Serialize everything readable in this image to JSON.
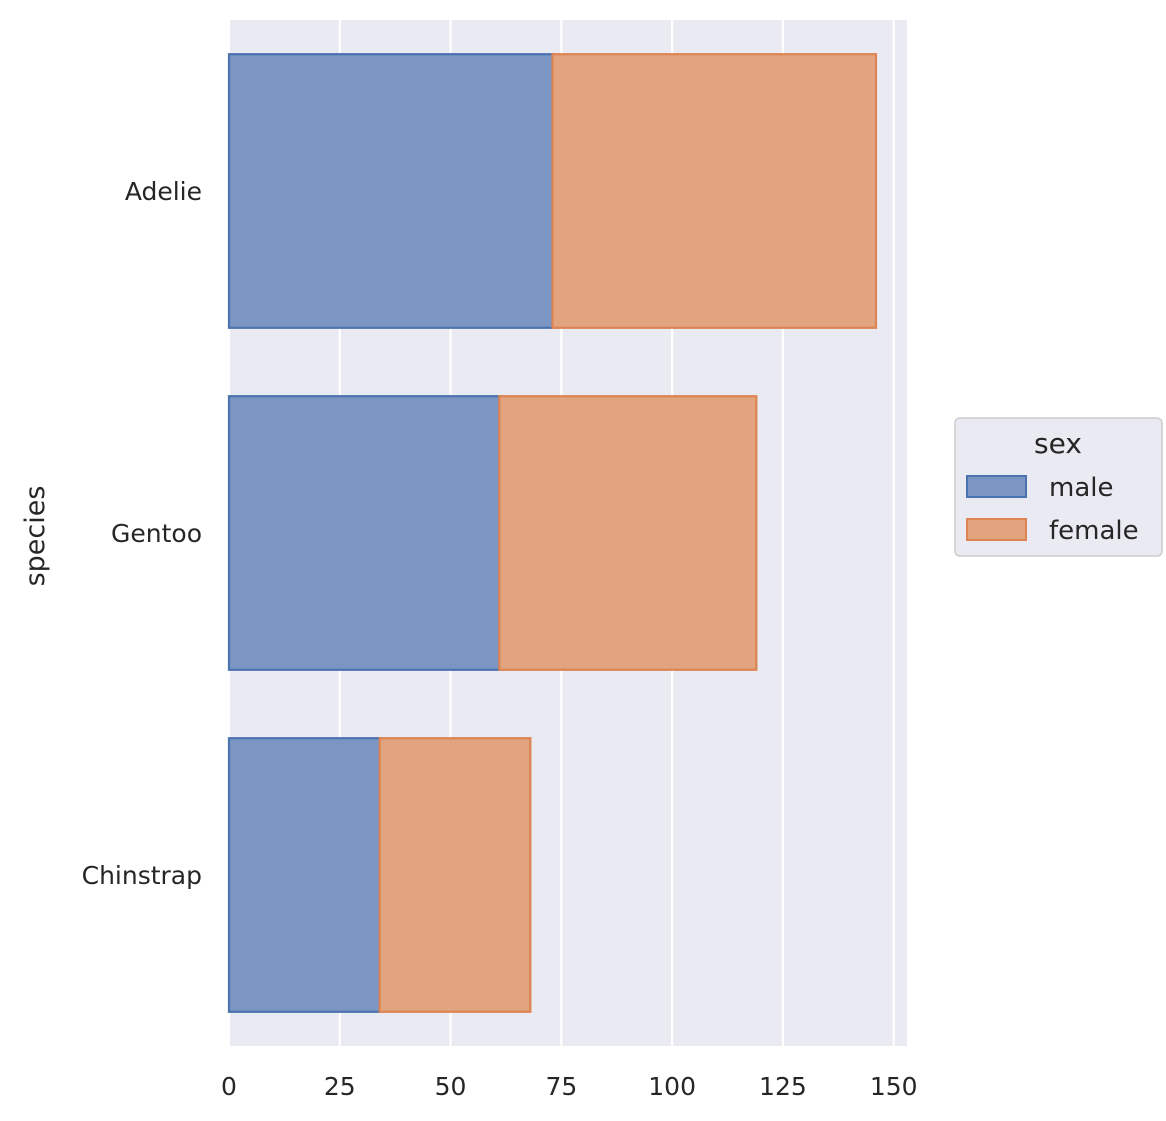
{
  "chart_data": {
    "type": "bar",
    "orientation": "horizontal",
    "stacked": true,
    "categories": [
      "Adelie",
      "Gentoo",
      "Chinstrap"
    ],
    "series": [
      {
        "name": "male",
        "values": [
          73,
          61,
          34
        ],
        "color": "#4c72b0"
      },
      {
        "name": "female",
        "values": [
          73,
          58,
          34
        ],
        "color": "#dd8452"
      }
    ],
    "xlabel": "",
    "ylabel": "species",
    "xlim": [
      0,
      153
    ],
    "xticks": [
      0,
      25,
      50,
      75,
      100,
      125,
      150
    ],
    "grid": true,
    "legend": {
      "title": "sex",
      "placement": "right"
    },
    "background_color": "#eaeaf2"
  }
}
